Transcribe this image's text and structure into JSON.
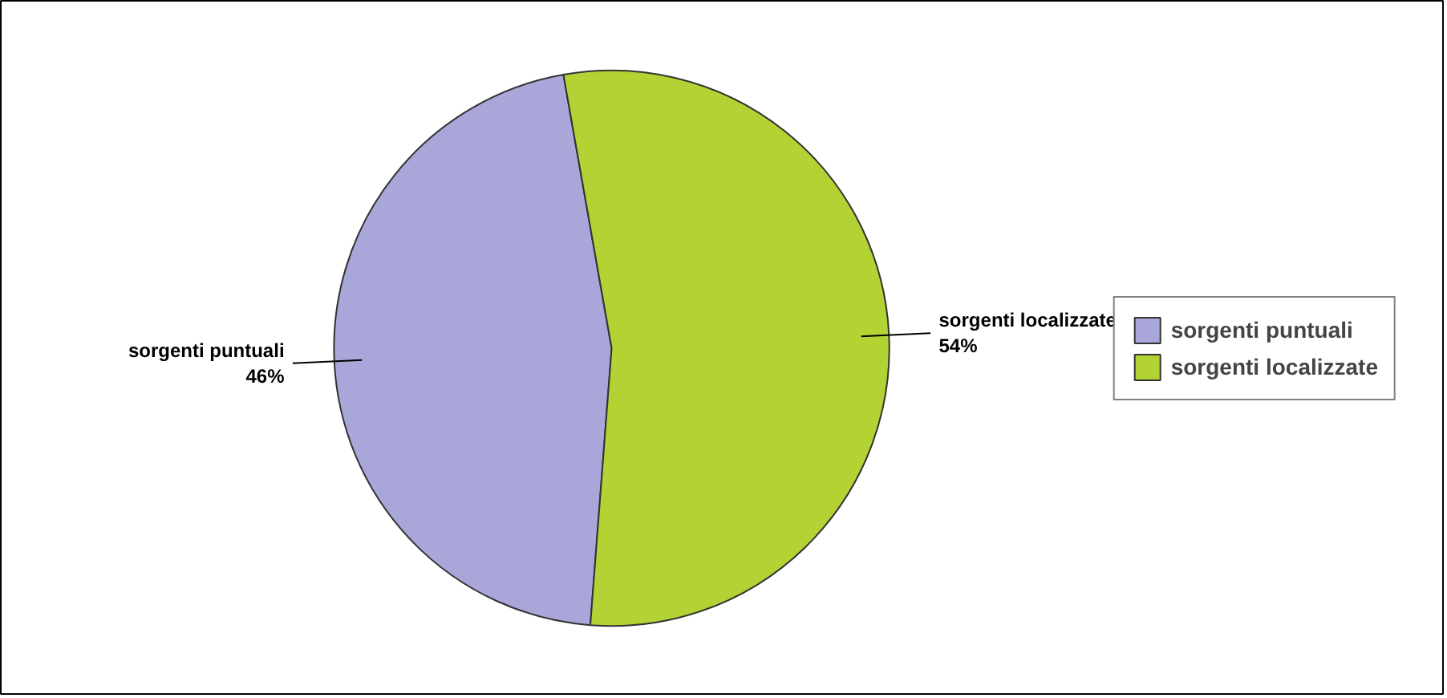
{
  "chart_data": {
    "type": "pie",
    "categories": [
      "sorgenti puntuali",
      "sorgenti localizzate"
    ],
    "values": [
      46,
      54
    ],
    "colors": [
      "#a9a6d9",
      "#b3d334"
    ],
    "value_labels": [
      "46%",
      "54%"
    ],
    "legend": "right"
  }
}
